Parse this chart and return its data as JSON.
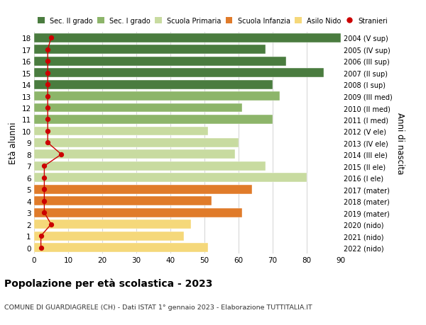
{
  "ages": [
    0,
    1,
    2,
    3,
    4,
    5,
    6,
    7,
    8,
    9,
    10,
    11,
    12,
    13,
    14,
    15,
    16,
    17,
    18
  ],
  "right_labels": [
    "2022 (nido)",
    "2021 (nido)",
    "2020 (nido)",
    "2019 (mater)",
    "2018 (mater)",
    "2017 (mater)",
    "2016 (I ele)",
    "2015 (II ele)",
    "2014 (III ele)",
    "2013 (IV ele)",
    "2012 (V ele)",
    "2011 (I med)",
    "2010 (II med)",
    "2009 (III med)",
    "2008 (I sup)",
    "2007 (II sup)",
    "2006 (III sup)",
    "2005 (IV sup)",
    "2004 (V sup)"
  ],
  "bar_values": [
    51,
    44,
    46,
    61,
    52,
    64,
    80,
    68,
    59,
    60,
    51,
    70,
    61,
    72,
    70,
    85,
    74,
    68,
    90
  ],
  "bar_colors": [
    "#f5d87a",
    "#f5d87a",
    "#f5d87a",
    "#e07b2a",
    "#e07b2a",
    "#e07b2a",
    "#c8dba0",
    "#c8dba0",
    "#c8dba0",
    "#c8dba0",
    "#c8dba0",
    "#8db56a",
    "#8db56a",
    "#8db56a",
    "#4a7c3f",
    "#4a7c3f",
    "#4a7c3f",
    "#4a7c3f",
    "#4a7c3f"
  ],
  "stranieri_values": [
    2,
    2,
    5,
    3,
    3,
    3,
    3,
    3,
    8,
    4,
    4,
    4,
    4,
    4,
    4,
    4,
    4,
    4,
    5
  ],
  "ylabel": "Età alunni",
  "ylabel_right": "Anni di nascita",
  "title": "Popolazione per età scolastica - 2023",
  "subtitle": "COMUNE DI GUARDIAGRELE (CH) - Dati ISTAT 1° gennaio 2023 - Elaborazione TUTTITALIA.IT",
  "xlim": [
    0,
    90
  ],
  "xticks": [
    0,
    10,
    20,
    30,
    40,
    50,
    60,
    70,
    80,
    90
  ],
  "legend_labels": [
    "Sec. II grado",
    "Sec. I grado",
    "Scuola Primaria",
    "Scuola Infanzia",
    "Asilo Nido",
    "Stranieri"
  ],
  "legend_colors": [
    "#4a7c3f",
    "#8db56a",
    "#c8dba0",
    "#e07b2a",
    "#f5d87a",
    "#cc0000"
  ],
  "bg_color": "#ffffff",
  "grid_color": "#cccccc",
  "bar_height": 0.78
}
